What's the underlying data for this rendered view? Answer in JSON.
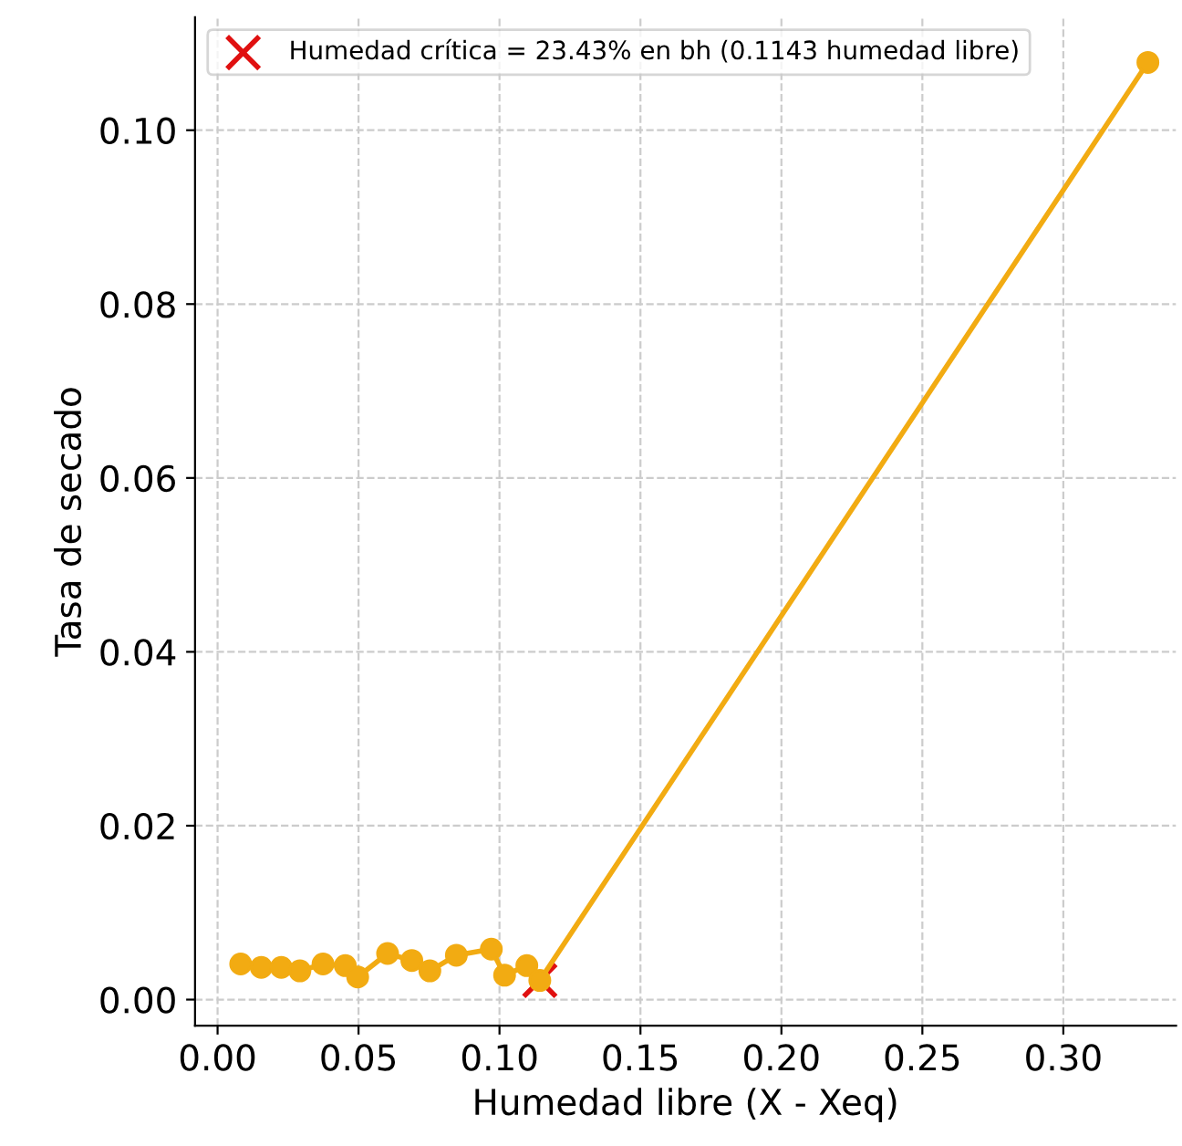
{
  "chart_data": {
    "type": "line",
    "xlabel": "Humedad libre (X - Xeq)",
    "ylabel": "Tasa de secado",
    "xlim": [
      -0.008,
      0.34
    ],
    "ylim": [
      -0.003,
      0.113
    ],
    "xticks": [
      {
        "value": 0,
        "label": "0.00"
      },
      0.05,
      {
        "value": 0.1,
        "label": "0.10"
      },
      0.15,
      {
        "value": 0.2,
        "label": "0.20"
      },
      0.25,
      {
        "value": 0.3,
        "label": "0.30"
      }
    ],
    "yticks": [
      {
        "value": 0,
        "label": "0.00"
      },
      0.02,
      0.04,
      0.06,
      0.08,
      {
        "value": 0.1,
        "label": "0.10"
      }
    ],
    "grid": true,
    "legend": "top left",
    "series": [
      {
        "color": "#f2ab12",
        "marker": "circle",
        "x": [
          0.0082,
          0.0155,
          0.0226,
          0.0292,
          0.0374,
          0.0453,
          0.0497,
          0.0603,
          0.0689,
          0.0753,
          0.0847,
          0.0971,
          0.1018,
          0.1097,
          0.1143,
          0.33
        ],
        "values": [
          0.0041,
          0.0037,
          0.0037,
          0.0033,
          0.0041,
          0.0039,
          0.0026,
          0.0053,
          0.0045,
          0.0033,
          0.0051,
          0.0058,
          0.0028,
          0.0039,
          0.0022,
          0.1078
        ]
      },
      {
        "type": "scatter",
        "name": "Humedad crítica = 23.43% en bh (0.1143 humedad libre)",
        "color": "#e01010",
        "marker": "cross",
        "x": [
          0.1143
        ],
        "values": [
          0.0022
        ]
      }
    ]
  }
}
